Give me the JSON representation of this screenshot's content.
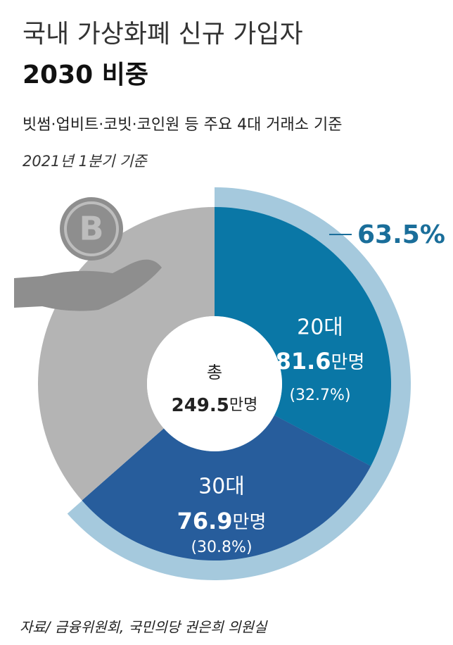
{
  "chart_data": {
    "type": "pie",
    "title": "국내 가상화폐 신규 가입자",
    "subtitle": "2030 비중",
    "notes": [
      "빗썸·업비트·코빗·코인원 등 주요 4대 거래소 기준",
      "2021년 1분기 기준"
    ],
    "source": "자료/ 금융위원회, 국민의당 권은희 의원실",
    "categories": [
      "20대",
      "30대",
      null
    ],
    "values": [
      81.6,
      76.9,
      91.0
    ],
    "unit": "만명",
    "value_labels": [
      "(32.7%)",
      "(30.8%)",
      null
    ],
    "colors": [
      "#0a77a6",
      "#275d9c",
      "#b4b4b4"
    ],
    "total_label": "총",
    "total": 249.5,
    "highlight": {
      "value": 63.5,
      "label": "63.5%",
      "color": "#a5c9dd"
    }
  }
}
